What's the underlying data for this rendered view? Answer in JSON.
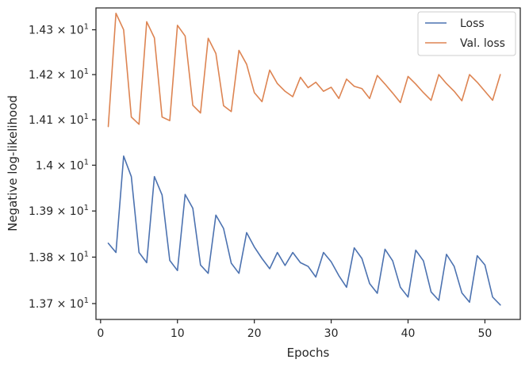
{
  "chart_data": {
    "type": "line",
    "xlabel": "Epochs",
    "ylabel": "Negative log-likelihood",
    "xlim": [
      -0.6,
      54.6
    ],
    "ylim": [
      13.666,
      14.349
    ],
    "y_scale": "log",
    "xticks": [
      0,
      10,
      20,
      30,
      40,
      50
    ],
    "xtick_labels": [
      "0",
      "10",
      "20",
      "30",
      "40",
      "50"
    ],
    "yticks": [
      13.7,
      13.8,
      13.9,
      14.0,
      14.1,
      14.2,
      14.3
    ],
    "ytick_labels": [
      {
        "mantissa": "1.37",
        "base": "10",
        "exp": "1"
      },
      {
        "mantissa": "1.38",
        "base": "10",
        "exp": "1"
      },
      {
        "mantissa": "1.39",
        "base": "10",
        "exp": "1"
      },
      {
        "mantissa": "1.4",
        "base": "10",
        "exp": "1"
      },
      {
        "mantissa": "1.41",
        "base": "10",
        "exp": "1"
      },
      {
        "mantissa": "1.42",
        "base": "10",
        "exp": "1"
      },
      {
        "mantissa": "1.43",
        "base": "10",
        "exp": "1"
      }
    ],
    "grid": false,
    "legend_position": "top-right",
    "x": [
      1,
      2,
      3,
      4,
      5,
      6,
      7,
      8,
      9,
      10,
      11,
      12,
      13,
      14,
      15,
      16,
      17,
      18,
      19,
      20,
      21,
      22,
      23,
      24,
      25,
      26,
      27,
      28,
      29,
      30,
      31,
      32,
      33,
      34,
      35,
      36,
      37,
      38,
      39,
      40,
      41,
      42,
      43,
      44,
      45,
      46,
      47,
      48,
      49,
      50,
      51,
      52
    ],
    "series": [
      {
        "name": "Loss",
        "color": "#4c72b0",
        "values": [
          13.83,
          13.81,
          14.02,
          13.975,
          13.81,
          13.788,
          13.975,
          13.935,
          13.793,
          13.771,
          13.936,
          13.906,
          13.783,
          13.765,
          13.891,
          13.862,
          13.787,
          13.765,
          13.853,
          13.822,
          13.797,
          13.775,
          13.81,
          13.782,
          13.81,
          13.788,
          13.78,
          13.757,
          13.81,
          13.79,
          13.76,
          13.735,
          13.82,
          13.797,
          13.743,
          13.722,
          13.817,
          13.792,
          13.735,
          13.714,
          13.815,
          13.792,
          13.725,
          13.707,
          13.806,
          13.78,
          13.723,
          13.703,
          13.803,
          13.783,
          13.714,
          13.697
        ]
      },
      {
        "name": "Val. loss",
        "color": "#dd8452",
        "values": [
          14.085,
          14.337,
          14.3,
          14.106,
          14.09,
          14.318,
          14.282,
          14.106,
          14.098,
          14.31,
          14.286,
          14.132,
          14.115,
          14.281,
          14.247,
          14.131,
          14.118,
          14.254,
          14.223,
          14.16,
          14.14,
          14.21,
          14.18,
          14.163,
          14.151,
          14.194,
          14.171,
          14.183,
          14.163,
          14.172,
          14.147,
          14.19,
          14.174,
          14.169,
          14.147,
          14.198,
          14.179,
          14.159,
          14.138,
          14.196,
          14.179,
          14.16,
          14.143,
          14.2,
          14.18,
          14.163,
          14.142,
          14.2,
          14.183,
          14.163,
          14.143,
          14.2
        ]
      }
    ]
  }
}
